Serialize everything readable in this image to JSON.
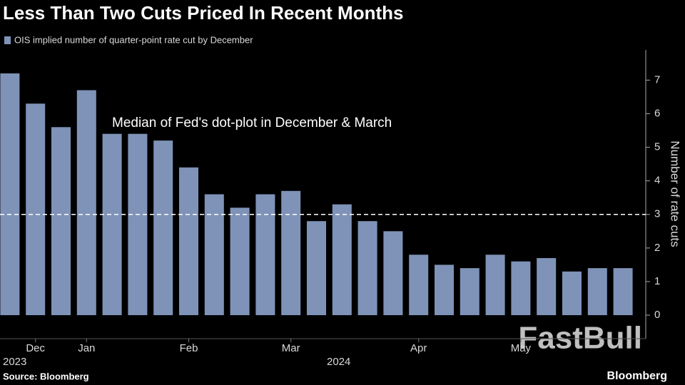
{
  "chart_data": {
    "type": "bar",
    "title": "Less Than Two Cuts Priced In Recent Months",
    "legend": "OIS implied number of quarter-point rate cut by December",
    "color": "#7f93b8",
    "categories": [
      null,
      "Dec",
      null,
      "Jan",
      null,
      null,
      null,
      "Feb",
      null,
      null,
      null,
      "Mar",
      null,
      null,
      null,
      null,
      "Apr",
      null,
      null,
      null,
      "May",
      null,
      null,
      null,
      null
    ],
    "values": [
      7.2,
      6.3,
      5.6,
      6.7,
      5.4,
      5.4,
      5.2,
      4.4,
      3.6,
      3.2,
      3.6,
      3.7,
      2.8,
      3.3,
      2.8,
      2.5,
      1.8,
      1.5,
      1.4,
      1.8,
      1.6,
      1.7,
      1.3,
      1.4,
      1.4
    ],
    "year_labels": [
      "2023",
      "2024"
    ],
    "ylim": [
      -0.7,
      7.9
    ],
    "yticks": [
      0,
      1,
      2,
      3,
      4,
      5,
      6,
      7
    ],
    "y_label": "Number of rate cuts",
    "reference_line": {
      "value": 3,
      "label": "Median of Fed's dot-plot in December & March"
    },
    "source": "Source: Bloomberg",
    "brand": "Bloomberg",
    "watermark": "FastBull"
  }
}
